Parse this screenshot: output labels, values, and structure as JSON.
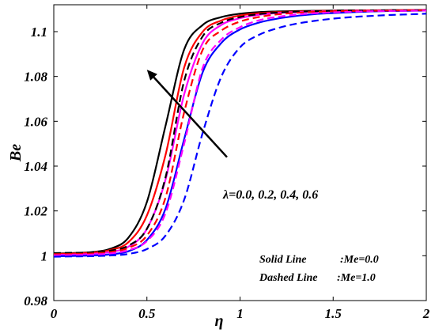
{
  "chart_data": {
    "type": "line",
    "title": "",
    "xlabel": "η",
    "ylabel": "Be",
    "xlim": [
      0,
      2
    ],
    "ylim": [
      0.98,
      1.112
    ],
    "xticks": [
      0,
      0.5,
      1,
      1.5,
      2
    ],
    "xtick_labels": [
      "0",
      "0.5",
      "1",
      "1.5",
      "2"
    ],
    "yticks": [
      0.98,
      1,
      1.02,
      1.04,
      1.06,
      1.08,
      1.1
    ],
    "ytick_labels": [
      "0.98",
      "1",
      "1.02",
      "1.04",
      "1.06",
      "1.08",
      "1.1"
    ],
    "x": [
      0,
      0.1,
      0.2,
      0.3,
      0.4,
      0.5,
      0.6,
      0.7,
      0.8,
      0.9,
      1.0,
      1.1,
      1.2,
      1.3,
      1.4,
      1.5,
      1.6,
      1.7,
      1.8,
      1.9,
      2.0
    ],
    "series": [
      {
        "style": "solid",
        "color": "#000000",
        "values": [
          1.001,
          1.0012,
          1.0016,
          1.003,
          1.008,
          1.024,
          1.058,
          1.092,
          1.103,
          1.1065,
          1.108,
          1.1087,
          1.109,
          1.1092,
          1.1093,
          1.1094,
          1.1095,
          1.1095,
          1.1096,
          1.1096,
          1.1097
        ]
      },
      {
        "style": "solid",
        "color": "#ff0000",
        "values": [
          1.0008,
          1.001,
          1.0014,
          1.0025,
          1.006,
          1.018,
          1.045,
          1.084,
          1.1,
          1.105,
          1.1072,
          1.1082,
          1.1087,
          1.109,
          1.1092,
          1.1093,
          1.1094,
          1.1095,
          1.1095,
          1.1096,
          1.1096
        ]
      },
      {
        "style": "solid",
        "color": "#ff00ff",
        "values": [
          1.0003,
          1.0005,
          1.0008,
          1.0016,
          1.004,
          1.012,
          1.034,
          1.072,
          1.095,
          1.103,
          1.106,
          1.1075,
          1.1083,
          1.1087,
          1.109,
          1.1092,
          1.1093,
          1.1094,
          1.1095,
          1.1095,
          1.1096
        ]
      },
      {
        "style": "solid",
        "color": "#0000ff",
        "values": [
          0.9998,
          0.9999,
          1.0001,
          1.0006,
          1.002,
          1.007,
          1.021,
          1.052,
          1.082,
          1.095,
          1.101,
          1.104,
          1.1058,
          1.107,
          1.1078,
          1.1083,
          1.1087,
          1.109,
          1.1092,
          1.1093,
          1.1094
        ]
      },
      {
        "style": "dashed",
        "color": "#000000",
        "values": [
          1.0012,
          1.0013,
          1.0015,
          1.0022,
          1.0045,
          1.012,
          1.035,
          1.078,
          1.098,
          1.104,
          1.1065,
          1.1078,
          1.1085,
          1.1089,
          1.1091,
          1.1093,
          1.1094,
          1.1094,
          1.1095,
          1.1095,
          1.1096
        ]
      },
      {
        "style": "dashed",
        "color": "#ff0000",
        "values": [
          1.0007,
          1.0008,
          1.001,
          1.0016,
          1.0035,
          1.009,
          1.026,
          1.064,
          1.092,
          1.1005,
          1.1045,
          1.1065,
          1.1077,
          1.1084,
          1.1088,
          1.1091,
          1.1092,
          1.1093,
          1.1094,
          1.1095,
          1.1095
        ]
      },
      {
        "style": "dashed",
        "color": "#ff00ff",
        "values": [
          1.0002,
          1.0003,
          1.0005,
          1.001,
          1.0025,
          1.0065,
          1.019,
          1.05,
          1.084,
          1.0965,
          1.102,
          1.105,
          1.1066,
          1.1076,
          1.1082,
          1.1086,
          1.1089,
          1.1091,
          1.1092,
          1.1093,
          1.1094
        ]
      },
      {
        "style": "dashed",
        "color": "#0000ff",
        "values": [
          0.9996,
          0.9997,
          0.9998,
          1.0001,
          1.0008,
          1.003,
          1.009,
          1.025,
          1.055,
          1.08,
          1.093,
          1.0985,
          1.1015,
          1.1035,
          1.1048,
          1.1058,
          1.1065,
          1.107,
          1.1074,
          1.1077,
          1.108
        ]
      }
    ],
    "arrow": {
      "from": [
        0.93,
        1.044
      ],
      "to": [
        0.5,
        1.083
      ]
    },
    "grid": false
  },
  "annotations": {
    "lambda_label": "λ=0.0, 0.2, 0.4, 0.6",
    "legend_solid_label": "Solid Line",
    "legend_solid_value": ":Me=0.0",
    "legend_dashed_label": "Dashed Line",
    "legend_dashed_value": ":Me=1.0"
  }
}
